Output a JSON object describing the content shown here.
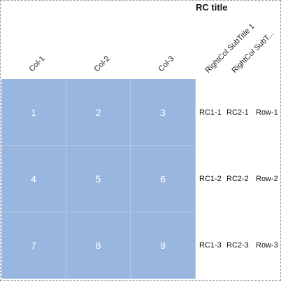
{
  "rc_title": "RC title",
  "columns": [
    "Col-1",
    "Col-2",
    "Col-3"
  ],
  "right_columns": [
    "RightCol SubTitle 1",
    "RightCol SubT..."
  ],
  "cells": [
    [
      "1",
      "2",
      "3"
    ],
    [
      "4",
      "5",
      "6"
    ],
    [
      "7",
      "8",
      "9"
    ]
  ],
  "rows": [
    {
      "rc1": "RC1-1",
      "rc2": "RC2-1",
      "label": "Row-1"
    },
    {
      "rc1": "RC1-2",
      "rc2": "RC2-2",
      "label": "Row-2"
    },
    {
      "rc1": "RC1-3",
      "rc2": "RC2-3",
      "label": "Row-3"
    }
  ],
  "colors": {
    "cell_fill": "#98b6e0",
    "cell_text": "#ffffff"
  }
}
